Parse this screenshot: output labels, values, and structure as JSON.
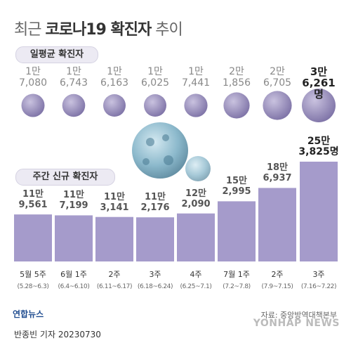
{
  "title": {
    "light": "최근",
    "bold": "코로나19 확진자",
    "tail": "추이"
  },
  "section_daily": "일평균 확진자",
  "section_weekly": "주간 신규 확진자",
  "chart_data": [
    {
      "type": "bubble",
      "title": "일평균 확진자",
      "categories": [
        "5월 5주",
        "6월 1주",
        "2주",
        "3주",
        "4주",
        "7월 1주",
        "2주",
        "3주"
      ],
      "values": [
        17080,
        16743,
        16163,
        16025,
        17441,
        21856,
        26705,
        36261
      ],
      "labels": [
        [
          "1만",
          "7,080"
        ],
        [
          "1만",
          "6,743"
        ],
        [
          "1만",
          "6,163"
        ],
        [
          "1만",
          "6,025"
        ],
        [
          "1만",
          "7,441"
        ],
        [
          "2만",
          "1,856"
        ],
        [
          "2만",
          "6,705"
        ],
        [
          "3만",
          "6,261명"
        ]
      ]
    },
    {
      "type": "bar",
      "title": "주간 신규 확진자",
      "categories": [
        "5월 5주",
        "6월 1주",
        "2주",
        "3주",
        "4주",
        "7월 1주",
        "2주",
        "3주"
      ],
      "subcategories": [
        "(5.28~6.3)",
        "(6.4~6.10)",
        "(6.11~6.17)",
        "(6.18~6.24)",
        "(6.25~7.1)",
        "(7.2~7.8)",
        "(7.9~7.15)",
        "(7.16~7.22)"
      ],
      "values": [
        119561,
        117199,
        113141,
        112176,
        122090,
        152995,
        186937,
        253825
      ],
      "labels": [
        [
          "11만",
          "9,561"
        ],
        [
          "11만",
          "7,199"
        ],
        [
          "11만",
          "3,141"
        ],
        [
          "11만",
          "2,176"
        ],
        [
          "12만",
          "2,090"
        ],
        [
          "15만",
          "2,995"
        ],
        [
          "18만",
          "6,937"
        ],
        [
          "25만",
          "3,825명"
        ]
      ]
    }
  ],
  "source": "자료: 중앙방역대책본부",
  "logo_left": "연합뉴스",
  "logo_right": "YONHAP NEWS",
  "byline": "반종빈 기자  20230730",
  "colors": {
    "bubble": "#8a7fae",
    "bar": "#a59bcb",
    "bar_highlight": "#a59bcb",
    "virus": "#6f9fb5"
  }
}
